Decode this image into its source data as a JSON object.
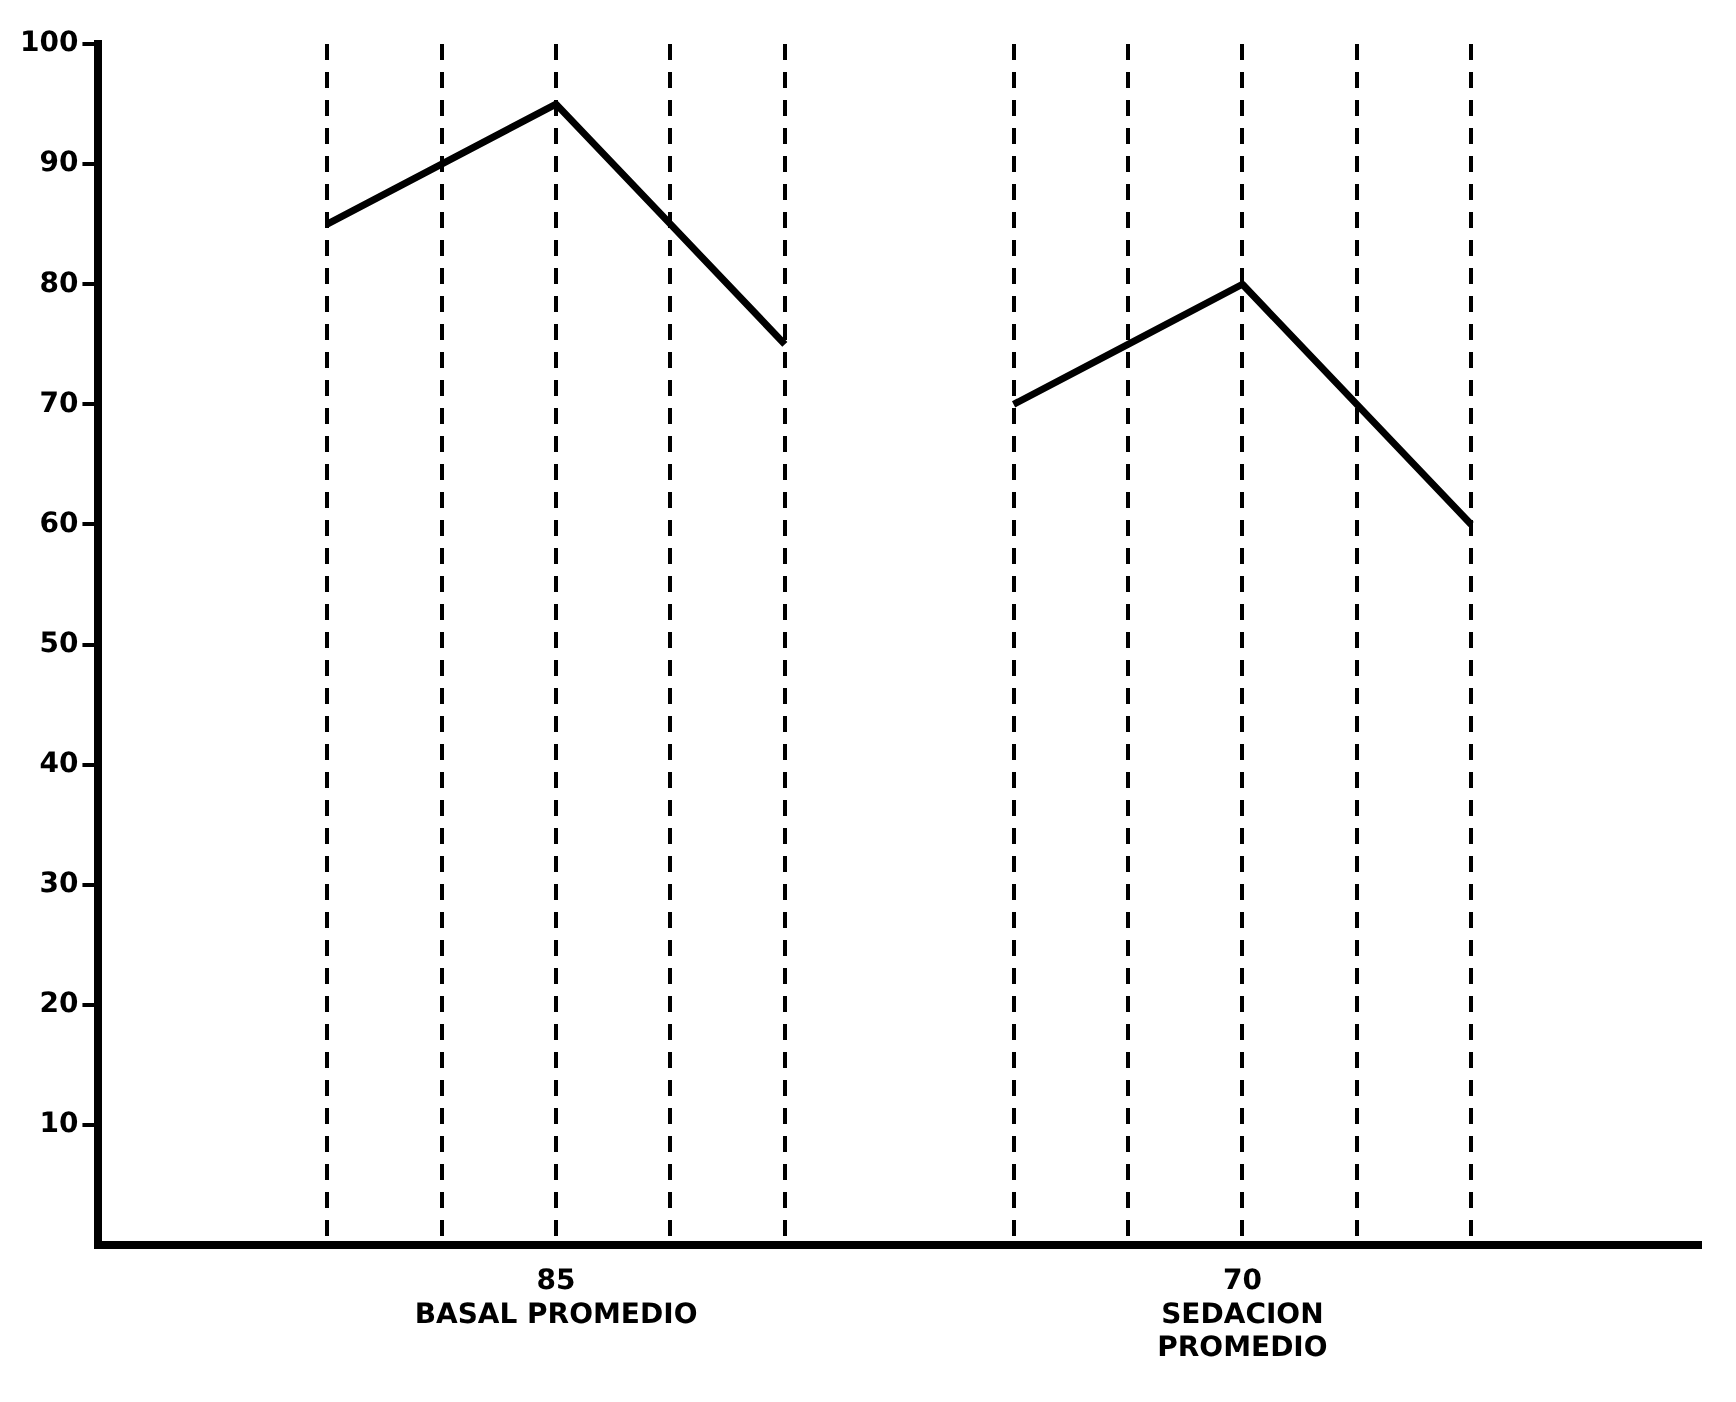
{
  "chart_data": {
    "type": "line",
    "categories": [
      null,
      null,
      null,
      null,
      "85\nBASAL PROMEDIO",
      null,
      null,
      null,
      null,
      null,
      "70\nSEDACION\nPROMEDIO",
      null,
      null,
      null,
      null
    ],
    "ylim": [
      0,
      100
    ],
    "yticks": [
      10,
      20,
      30,
      40,
      50,
      60,
      70,
      80,
      90,
      100
    ],
    "grid": "x",
    "legend": false,
    "marker": "none",
    "line_style": "solid",
    "series": [
      {
        "color": "#000000",
        "values": [
          null,
          null,
          85,
          90,
          95,
          85,
          75,
          null,
          null,
          null,
          null,
          null,
          null,
          null,
          null
        ]
      },
      {
        "color": "#000000",
        "values": [
          null,
          null,
          null,
          null,
          null,
          null,
          null,
          null,
          70,
          75,
          80,
          70,
          60,
          null,
          null
        ]
      }
    ]
  }
}
